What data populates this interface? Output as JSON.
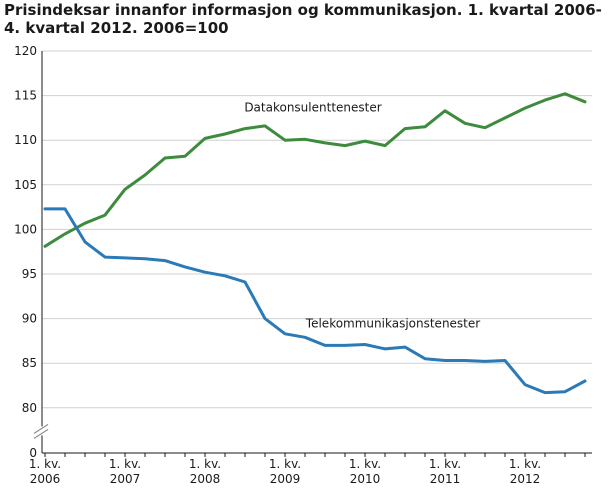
{
  "chart_data": {
    "type": "line",
    "title": "Prisindeksar innanfor informasjon og kommunikasjon. 1. kvartal 2006-4. kvartal 2012. 2006=100",
    "title_lines": [
      "Prisindeksar innanfor informasjon og kommunikasjon. 1. kvartal 2006-",
      "4. kvartal 2012. 2006=100"
    ],
    "xlabel": "",
    "ylabel": "",
    "ylim": [
      0,
      120
    ],
    "axis_break": true,
    "yticks": [
      0,
      80,
      85,
      90,
      95,
      100,
      105,
      110,
      115,
      120
    ],
    "grid": true,
    "x": [
      "2006K1",
      "2006K2",
      "2006K3",
      "2006K4",
      "2007K1",
      "2007K2",
      "2007K3",
      "2007K4",
      "2008K1",
      "2008K2",
      "2008K3",
      "2008K4",
      "2009K1",
      "2009K2",
      "2009K3",
      "2009K4",
      "2010K1",
      "2010K2",
      "2010K3",
      "2010K4",
      "2011K1",
      "2011K2",
      "2011K3",
      "2011K4",
      "2012K1",
      "2012K2",
      "2012K3",
      "2012K4"
    ],
    "x_tick_labels": [
      {
        "index": 0,
        "line1": "1. kv.",
        "line2": "2006"
      },
      {
        "index": 4,
        "line1": "1. kv.",
        "line2": "2007"
      },
      {
        "index": 8,
        "line1": "1. kv.",
        "line2": "2008"
      },
      {
        "index": 12,
        "line1": "1. kv.",
        "line2": "2009"
      },
      {
        "index": 16,
        "line1": "1. kv.",
        "line2": "2010"
      },
      {
        "index": 20,
        "line1": "1. kv.",
        "line2": "2011"
      },
      {
        "index": 24,
        "line1": "1. kv.",
        "line2": "2012"
      }
    ],
    "series": [
      {
        "name": "Datakonsulenttenester",
        "color": "#3d8b3d",
        "values": [
          98.1,
          99.5,
          100.7,
          101.6,
          104.5,
          106.1,
          108.0,
          108.2,
          110.2,
          110.7,
          111.3,
          111.6,
          110.0,
          110.1,
          109.7,
          109.4,
          109.9,
          109.4,
          111.3,
          111.5,
          113.3,
          111.9,
          111.4,
          112.5,
          113.6,
          114.5,
          115.2,
          114.3
        ],
        "label_at": {
          "index": 13.4,
          "value": 113.2
        }
      },
      {
        "name": "Telekommunikasjonstenester",
        "color": "#2a7ab8",
        "values": [
          102.3,
          102.3,
          98.6,
          96.9,
          96.8,
          96.7,
          96.5,
          95.8,
          95.2,
          94.8,
          94.1,
          90.0,
          88.3,
          87.9,
          87.0,
          87.0,
          87.1,
          86.6,
          86.8,
          85.5,
          85.3,
          85.3,
          85.2,
          85.3,
          82.6,
          81.7,
          81.8,
          83.0
        ],
        "label_at": {
          "index": 17.4,
          "value": 89.0
        }
      }
    ]
  }
}
